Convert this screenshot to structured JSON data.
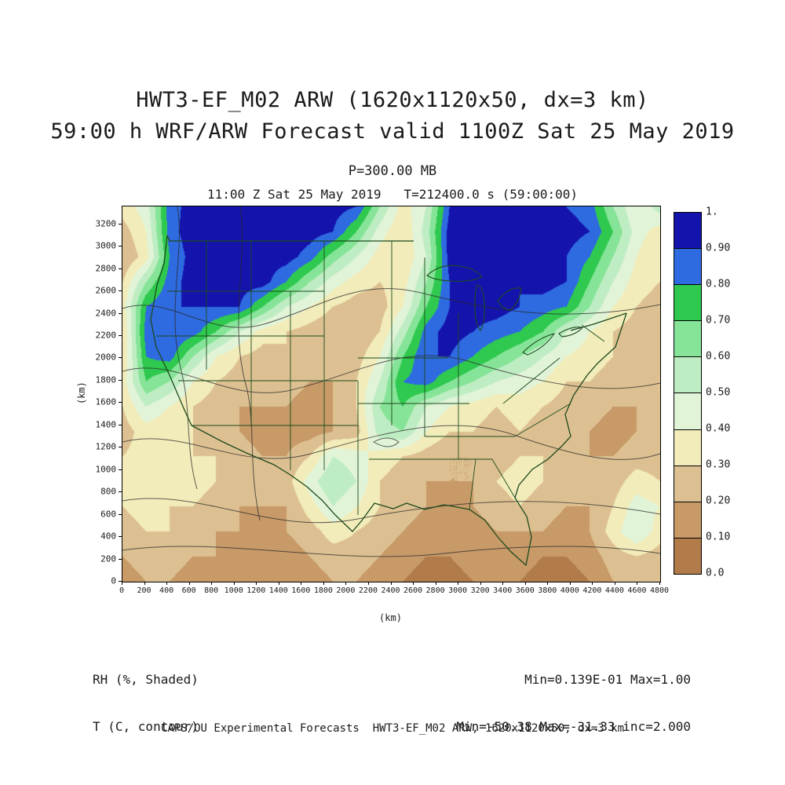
{
  "titles": {
    "line1": "HWT3-EF_M02 ARW (1620x1120x50, dx=3 km)",
    "line2": "59:00 h WRF/ARW Forecast valid 1100Z Sat 25 May 2019",
    "pressure": "P=300.00 MB",
    "plot_header": "11:00 Z Sat 25 May 2019   T=212400.0 s (59:00:00)"
  },
  "axes": {
    "x_label": "(km)",
    "y_label": "(km)",
    "x_range": [
      0,
      4800
    ],
    "y_range": [
      0,
      3360
    ],
    "x_ticks": [
      0,
      200,
      400,
      600,
      800,
      1000,
      1200,
      1400,
      1600,
      1800,
      2000,
      2200,
      2400,
      2600,
      2800,
      3000,
      3200,
      3400,
      3600,
      3800,
      4000,
      4200,
      4400,
      4600,
      4800
    ],
    "y_ticks": [
      0,
      200,
      400,
      600,
      800,
      1000,
      1200,
      1400,
      1600,
      1800,
      2000,
      2200,
      2400,
      2600,
      2800,
      3000,
      3200
    ]
  },
  "colorbar": {
    "labels_top_to_bottom": [
      "1.",
      "0.90",
      "0.80",
      "0.70",
      "0.60",
      "0.50",
      "0.40",
      "0.30",
      "0.20",
      "0.10",
      "0.0"
    ]
  },
  "annotations": {
    "shaded_label": "RH (%, Shaded)",
    "contour_label": "T (C, contour)",
    "shaded_minmax": "Min=0.139E-01 Max=1.00",
    "contour_minmax": "Min=-50.38 Max=-31.33 inc=2.000"
  },
  "footer": "CAPS/OU Experimental Forecasts  HWT3-EF_M02 ARW, 1620x1120x50, dx=3 km",
  "colors": {
    "text": "#1a1a1a",
    "state_boundary": "#1d4a1d",
    "temperature_contour": "#2a2a2a",
    "frame": "#000000"
  },
  "chart_data": {
    "type": "heatmap",
    "title": "HWT3-EF_M02 ARW (1620x1120x50, dx=3 km)",
    "subtitle": "59:00 h WRF/ARW Forecast valid 1100Z Sat 25 May 2019",
    "level": "P=300.00 MB",
    "valid_time": "11:00 Z Sat 25 May 2019",
    "model_time": "T=212400.0 s (59:00:00)",
    "shaded_variable": "RH (%, Shaded)",
    "contour_variable": "T (C, contour)",
    "shaded_min": 0.0139,
    "shaded_max": 1.0,
    "contour_min": -50.38,
    "contour_max": -31.33,
    "contour_interval": 2.0,
    "xlabel": "(km)",
    "ylabel": "(km)",
    "xlim": [
      0,
      4800
    ],
    "ylim": [
      0,
      3360
    ],
    "levels": [
      0.0,
      0.1,
      0.2,
      0.3,
      0.4,
      0.5,
      0.6,
      0.7,
      0.8,
      0.9,
      1.0
    ],
    "level_colors_bottom_to_top": [
      "#b27c4a",
      "#c79a68",
      "#ddc091",
      "#f2ecba",
      "#e2f4d8",
      "#bfedc3",
      "#86e498",
      "#2fc94f",
      "#2e6ae0",
      "#1414ad"
    ],
    "grid_note": "coarse RH field estimate, rows north-to-south, cols west-to-east",
    "rh_grid_north_to_south": [
      [
        0.35,
        0.45,
        0.85,
        0.95,
        0.98,
        0.98,
        0.98,
        0.98,
        0.95,
        0.95,
        0.9,
        0.6,
        0.35,
        0.5,
        0.9,
        0.98,
        0.98,
        0.95,
        0.95,
        0.9,
        0.85,
        0.6,
        0.4,
        0.55
      ],
      [
        0.25,
        0.4,
        0.85,
        0.97,
        0.98,
        0.98,
        0.98,
        0.97,
        0.95,
        0.9,
        0.7,
        0.45,
        0.3,
        0.55,
        0.95,
        0.98,
        0.97,
        0.95,
        0.95,
        0.95,
        0.9,
        0.7,
        0.45,
        0.35
      ],
      [
        0.2,
        0.35,
        0.8,
        0.95,
        0.97,
        0.95,
        0.95,
        0.95,
        0.85,
        0.65,
        0.5,
        0.35,
        0.3,
        0.5,
        0.95,
        0.97,
        0.95,
        0.95,
        0.95,
        0.9,
        0.8,
        0.6,
        0.4,
        0.3
      ],
      [
        0.3,
        0.6,
        0.85,
        0.95,
        0.95,
        0.95,
        0.95,
        0.8,
        0.6,
        0.45,
        0.35,
        0.3,
        0.35,
        0.6,
        0.9,
        0.92,
        0.9,
        0.9,
        0.95,
        0.9,
        0.7,
        0.5,
        0.35,
        0.3
      ],
      [
        0.35,
        0.8,
        0.9,
        0.9,
        0.9,
        0.9,
        0.7,
        0.5,
        0.4,
        0.3,
        0.25,
        0.25,
        0.4,
        0.7,
        0.9,
        0.95,
        0.95,
        0.9,
        0.85,
        0.8,
        0.6,
        0.4,
        0.3,
        0.25
      ],
      [
        0.3,
        0.85,
        0.9,
        0.85,
        0.7,
        0.5,
        0.35,
        0.3,
        0.25,
        0.2,
        0.2,
        0.3,
        0.55,
        0.85,
        0.95,
        0.9,
        0.85,
        0.8,
        0.7,
        0.5,
        0.4,
        0.3,
        0.25,
        0.2
      ],
      [
        0.3,
        0.8,
        0.85,
        0.6,
        0.4,
        0.3,
        0.25,
        0.3,
        0.25,
        0.2,
        0.25,
        0.4,
        0.7,
        0.9,
        0.9,
        0.8,
        0.7,
        0.6,
        0.5,
        0.4,
        0.35,
        0.3,
        0.25,
        0.2
      ],
      [
        0.35,
        0.7,
        0.6,
        0.4,
        0.3,
        0.25,
        0.2,
        0.25,
        0.2,
        0.2,
        0.3,
        0.5,
        0.8,
        0.85,
        0.7,
        0.6,
        0.5,
        0.45,
        0.4,
        0.3,
        0.3,
        0.25,
        0.2,
        0.2
      ],
      [
        0.3,
        0.5,
        0.4,
        0.3,
        0.25,
        0.2,
        0.2,
        0.2,
        0.15,
        0.2,
        0.3,
        0.6,
        0.7,
        0.5,
        0.4,
        0.35,
        0.3,
        0.35,
        0.3,
        0.25,
        0.25,
        0.2,
        0.2,
        0.25
      ],
      [
        0.25,
        0.35,
        0.3,
        0.3,
        0.25,
        0.2,
        0.15,
        0.15,
        0.15,
        0.2,
        0.25,
        0.55,
        0.6,
        0.4,
        0.3,
        0.3,
        0.25,
        0.3,
        0.25,
        0.2,
        0.2,
        0.15,
        0.2,
        0.3
      ],
      [
        0.3,
        0.35,
        0.35,
        0.3,
        0.3,
        0.25,
        0.2,
        0.2,
        0.3,
        0.5,
        0.45,
        0.35,
        0.3,
        0.25,
        0.2,
        0.2,
        0.25,
        0.3,
        0.3,
        0.25,
        0.2,
        0.2,
        0.25,
        0.25
      ],
      [
        0.35,
        0.4,
        0.35,
        0.35,
        0.3,
        0.25,
        0.2,
        0.25,
        0.45,
        0.6,
        0.5,
        0.3,
        0.25,
        0.2,
        0.2,
        0.2,
        0.3,
        0.35,
        0.3,
        0.25,
        0.2,
        0.25,
        0.35,
        0.3
      ],
      [
        0.3,
        0.35,
        0.3,
        0.3,
        0.25,
        0.2,
        0.2,
        0.2,
        0.35,
        0.5,
        0.4,
        0.3,
        0.25,
        0.2,
        0.15,
        0.2,
        0.25,
        0.3,
        0.25,
        0.2,
        0.2,
        0.3,
        0.45,
        0.4
      ],
      [
        0.25,
        0.3,
        0.3,
        0.25,
        0.2,
        0.2,
        0.15,
        0.2,
        0.25,
        0.35,
        0.3,
        0.25,
        0.2,
        0.15,
        0.15,
        0.15,
        0.2,
        0.2,
        0.2,
        0.15,
        0.2,
        0.35,
        0.5,
        0.35
      ],
      [
        0.2,
        0.25,
        0.25,
        0.2,
        0.2,
        0.15,
        0.15,
        0.15,
        0.2,
        0.25,
        0.25,
        0.2,
        0.15,
        0.1,
        0.1,
        0.15,
        0.15,
        0.15,
        0.1,
        0.1,
        0.15,
        0.25,
        0.3,
        0.25
      ],
      [
        0.15,
        0.2,
        0.2,
        0.15,
        0.15,
        0.1,
        0.1,
        0.1,
        0.15,
        0.2,
        0.2,
        0.15,
        0.1,
        0.05,
        0.05,
        0.1,
        0.1,
        0.1,
        0.05,
        0.05,
        0.1,
        0.2,
        0.25,
        0.2
      ]
    ]
  }
}
